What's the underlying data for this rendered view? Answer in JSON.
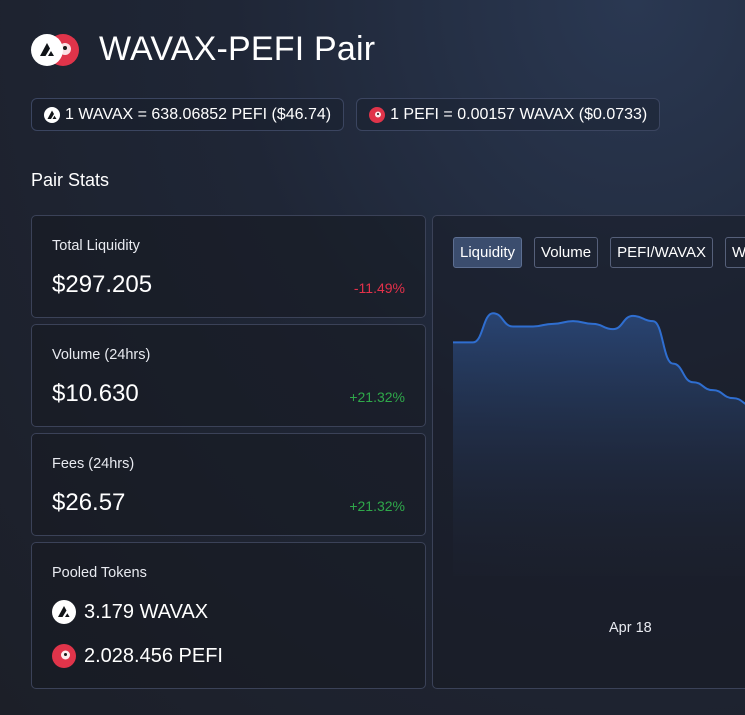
{
  "header": {
    "title": "WAVAX-PEFI Pair",
    "token_a_icon": "avalanche-icon",
    "token_b_icon": "penguin-icon"
  },
  "prices": [
    {
      "icon": "avalanche-icon",
      "text": "1 WAVAX = 638.06852 PEFI ($46.74)"
    },
    {
      "icon": "penguin-icon",
      "text": "1 PEFI = 0.00157 WAVAX ($0.0733)"
    }
  ],
  "section_title": "Pair Stats",
  "stats": {
    "liquidity": {
      "label": "Total Liquidity",
      "value": "$297.205",
      "change": "-11.49%"
    },
    "volume": {
      "label": "Volume (24hrs)",
      "value": "$10.630",
      "change": "+21.32%"
    },
    "fees": {
      "label": "Fees (24hrs)",
      "value": "$26.57",
      "change": "+21.32%"
    }
  },
  "pooled": {
    "label": "Pooled Tokens",
    "tokens": [
      {
        "icon": "avalanche-icon",
        "text": "3.179 WAVAX"
      },
      {
        "icon": "penguin-icon",
        "text": "2.028.456 PEFI"
      }
    ]
  },
  "chart": {
    "tabs": [
      "Liquidity",
      "Volume",
      "PEFI/WAVAX",
      "W"
    ],
    "active_tab": "Liquidity",
    "x_label": "Apr 18"
  },
  "colors": {
    "accent": "#2f6ed0",
    "negative": "#e3314a",
    "positive": "#2fa84a"
  },
  "chart_data": {
    "type": "area",
    "x": [
      0,
      1,
      2,
      3,
      4,
      5,
      6,
      7,
      8,
      9,
      10,
      11,
      12,
      13,
      14,
      15,
      16
    ],
    "values": [
      0.88,
      0.88,
      0.99,
      0.94,
      0.94,
      0.95,
      0.96,
      0.95,
      0.93,
      0.98,
      0.96,
      0.8,
      0.73,
      0.7,
      0.67,
      0.64,
      0.62
    ],
    "xlabel": "",
    "ylabel": "",
    "ylim": [
      0,
      1.1
    ],
    "x_tick_labels": [
      "Apr 18"
    ],
    "grid": false
  }
}
